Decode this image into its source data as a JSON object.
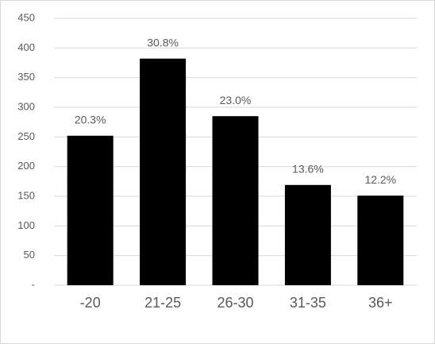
{
  "chart_data": {
    "type": "bar",
    "categories": [
      "-20",
      "21-25",
      "26-30",
      "31-35",
      "36+"
    ],
    "values": [
      252,
      382,
      285,
      169,
      151
    ],
    "annotations": [
      "20.3%",
      "30.8%",
      "23.0%",
      "13.6%",
      "12.2%"
    ],
    "color": "#000000",
    "ylim": [
      0,
      450
    ],
    "yticks": [
      {
        "value": 0,
        "label": "-"
      },
      50,
      100,
      150,
      200,
      250,
      300,
      350,
      400,
      450
    ],
    "grid": true
  }
}
